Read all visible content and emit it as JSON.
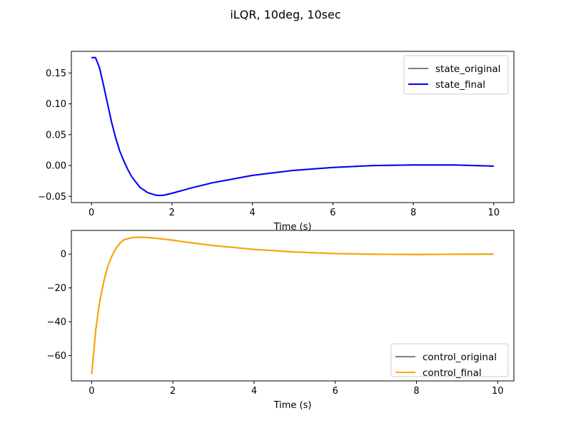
{
  "figure": {
    "title": "iLQR, 10deg, 10sec"
  },
  "chart_data": [
    {
      "type": "line",
      "xlabel": "Time (s)",
      "ylabel": "",
      "xlim": [
        -0.5,
        10.5
      ],
      "ylim": [
        -0.06,
        0.185
      ],
      "xticks": [
        0,
        2,
        4,
        6,
        8,
        10
      ],
      "yticks": [
        -0.05,
        0.0,
        0.05,
        0.1,
        0.15
      ],
      "ytick_labels": [
        "−0.05",
        "0.00",
        "0.05",
        "0.10",
        "0.15"
      ],
      "grid": false,
      "legend_position": "upper-right",
      "series": [
        {
          "name": "state_original",
          "color": "#808080",
          "x": [
            0,
            0.1,
            0.2,
            0.3,
            0.4,
            0.5,
            0.6,
            0.7,
            0.8,
            0.9,
            1.0,
            1.2,
            1.4,
            1.6,
            1.7,
            1.8,
            2.0,
            2.5,
            3.0,
            4.0,
            5.0,
            6.0,
            7.0,
            8.0,
            9.0,
            10.0
          ],
          "y": [
            0.175,
            0.175,
            0.158,
            0.13,
            0.1,
            0.07,
            0.045,
            0.024,
            0.008,
            -0.006,
            -0.018,
            -0.035,
            -0.044,
            -0.048,
            -0.0485,
            -0.048,
            -0.045,
            -0.036,
            -0.028,
            -0.016,
            -0.008,
            -0.003,
            0.0,
            0.001,
            0.001,
            -0.001
          ]
        },
        {
          "name": "state_final",
          "color": "#0000ff",
          "x": [
            0,
            0.1,
            0.2,
            0.3,
            0.4,
            0.5,
            0.6,
            0.7,
            0.8,
            0.9,
            1.0,
            1.2,
            1.4,
            1.6,
            1.7,
            1.8,
            2.0,
            2.5,
            3.0,
            4.0,
            5.0,
            6.0,
            7.0,
            8.0,
            9.0,
            10.0
          ],
          "y": [
            0.175,
            0.175,
            0.158,
            0.13,
            0.1,
            0.07,
            0.045,
            0.024,
            0.008,
            -0.006,
            -0.018,
            -0.035,
            -0.044,
            -0.048,
            -0.0485,
            -0.048,
            -0.045,
            -0.036,
            -0.028,
            -0.016,
            -0.008,
            -0.003,
            0.0,
            0.001,
            0.001,
            -0.001
          ]
        }
      ]
    },
    {
      "type": "line",
      "xlabel": "Time (s)",
      "ylabel": "",
      "xlim": [
        -0.5,
        10.4
      ],
      "ylim": [
        -75,
        14
      ],
      "xticks": [
        0,
        2,
        4,
        6,
        8,
        10
      ],
      "yticks": [
        -60,
        -40,
        -20,
        0
      ],
      "ytick_labels": [
        "−60",
        "−40",
        "−20",
        "0"
      ],
      "grid": false,
      "legend_position": "lower-right",
      "series": [
        {
          "name": "control_original",
          "color": "#808080",
          "x": [
            0,
            0.05,
            0.1,
            0.15,
            0.2,
            0.3,
            0.4,
            0.5,
            0.6,
            0.7,
            0.8,
            1.0,
            1.2,
            1.4,
            1.6,
            2.0,
            2.5,
            3.0,
            4.0,
            5.0,
            6.0,
            7.0,
            8.0,
            9.0,
            9.9
          ],
          "y": [
            -71,
            -58,
            -45,
            -36,
            -28,
            -16,
            -7,
            -1,
            3.5,
            6.5,
            8.5,
            9.8,
            10,
            9.8,
            9.3,
            8.2,
            6.5,
            5.0,
            2.8,
            1.2,
            0.3,
            -0.1,
            -0.2,
            -0.1,
            0
          ]
        },
        {
          "name": "control_final",
          "color": "#ffa500",
          "x": [
            0,
            0.05,
            0.1,
            0.15,
            0.2,
            0.3,
            0.4,
            0.5,
            0.6,
            0.7,
            0.8,
            1.0,
            1.2,
            1.4,
            1.6,
            2.0,
            2.5,
            3.0,
            4.0,
            5.0,
            6.0,
            7.0,
            8.0,
            9.0,
            9.9
          ],
          "y": [
            -71,
            -58,
            -45,
            -36,
            -28,
            -16,
            -7,
            -1,
            3.5,
            6.5,
            8.5,
            9.8,
            10,
            9.8,
            9.3,
            8.2,
            6.5,
            5.0,
            2.8,
            1.2,
            0.3,
            -0.1,
            -0.2,
            -0.1,
            0
          ]
        }
      ]
    }
  ]
}
